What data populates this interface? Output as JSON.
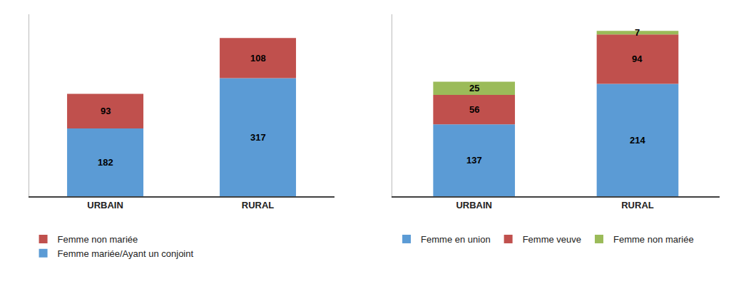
{
  "chart_data": [
    {
      "type": "bar",
      "stacked": true,
      "categories": [
        "URBAIN",
        "RURAL"
      ],
      "series": [
        {
          "name": "Femme mariée/Ayant un conjoint",
          "color": "#5B9BD5",
          "values": [
            182,
            317
          ]
        },
        {
          "name": "Femme non mariée",
          "color": "#C0504D",
          "values": [
            93,
            108
          ]
        }
      ],
      "ylim": [
        0,
        488.75
      ],
      "data_labels": true,
      "tick_labels": "x",
      "grid": false,
      "legend": "lower left"
    },
    {
      "type": "bar",
      "stacked": true,
      "categories": [
        "URBAIN",
        "RURAL"
      ],
      "series": [
        {
          "name": "Femme en union",
          "color": "#5B9BD5",
          "values": [
            137,
            214
          ]
        },
        {
          "name": "Femme veuve",
          "color": "#C0504D",
          "values": [
            56,
            94
          ]
        },
        {
          "name": "Femme non mariée",
          "color": "#9BBB59",
          "values": [
            25,
            7
          ]
        }
      ],
      "ylim": [
        0,
        346.5
      ],
      "data_labels": true,
      "tick_labels": "x",
      "grid": false,
      "legend": "lower left"
    }
  ]
}
